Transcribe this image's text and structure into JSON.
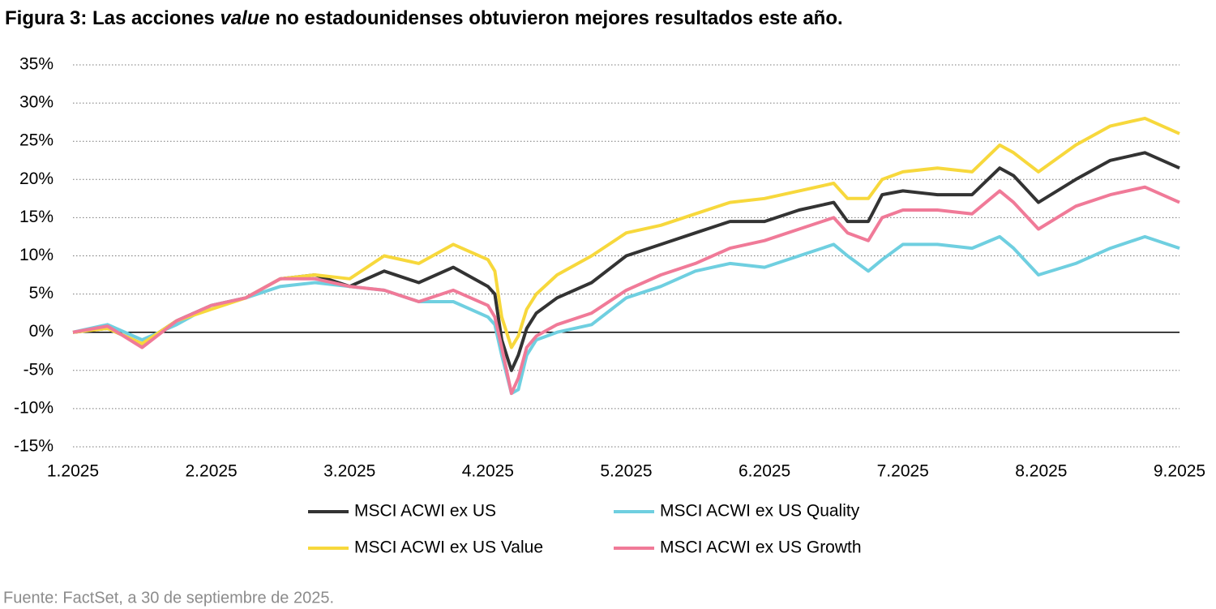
{
  "chart_data": {
    "type": "line",
    "title": [
      "Figura 3: Las acciones ",
      "value",
      " no estadounidenses obtuvieron mejores resultados este año."
    ],
    "source": "Fuente: FactSet, a 30 de septiembre de 2025.",
    "x": [
      1,
      1.25,
      1.5,
      1.75,
      2,
      2.25,
      2.5,
      2.75,
      3,
      3.25,
      3.5,
      3.75,
      4,
      4.05,
      4.1,
      4.17,
      4.22,
      4.28,
      4.35,
      4.5,
      4.75,
      5,
      5.25,
      5.5,
      5.75,
      6,
      6.25,
      6.5,
      6.6,
      6.75,
      6.85,
      7,
      7.25,
      7.5,
      7.7,
      7.8,
      7.98,
      8.25,
      8.5,
      8.75,
      9
    ],
    "series": [
      {
        "name": "MSCI ACWI ex US",
        "color": "#333333",
        "values": [
          0,
          0.5,
          -1.5,
          1.5,
          3.5,
          4.5,
          7,
          7.5,
          6,
          8,
          6.5,
          8.5,
          6,
          5,
          -1,
          -5,
          -3,
          0.5,
          2.5,
          4.5,
          6.5,
          10,
          11.5,
          13,
          14.5,
          14.5,
          16,
          17,
          14.5,
          14.5,
          18,
          18.5,
          18,
          18,
          21.5,
          20.5,
          17,
          20,
          22.5,
          23.5,
          21.5
        ]
      },
      {
        "name": "MSCI ACWI ex US Quality",
        "color": "#6fcfe0",
        "values": [
          0,
          1,
          -1,
          1,
          3.5,
          4.5,
          6,
          6.5,
          6,
          5.5,
          4,
          4,
          2,
          1,
          -3,
          -8,
          -7.5,
          -3,
          -1,
          0,
          1,
          4.5,
          6,
          8,
          9,
          8.5,
          10,
          11.5,
          10,
          8,
          9.5,
          11.5,
          11.5,
          11,
          12.5,
          11,
          7.5,
          9,
          11,
          12.5,
          11
        ]
      },
      {
        "name": "MSCI ACWI ex US Value",
        "color": "#f7d83c",
        "values": [
          0,
          0.5,
          -1.5,
          1.5,
          3,
          4.5,
          7,
          7.5,
          7,
          10,
          9,
          11.5,
          9.5,
          8,
          2,
          -2,
          -0.5,
          3,
          5,
          7.5,
          10,
          13,
          14,
          15.5,
          17,
          17.5,
          18.5,
          19.5,
          17.5,
          17.5,
          20,
          21,
          21.5,
          21,
          24.5,
          23.5,
          21,
          24.5,
          27,
          28,
          26
        ]
      },
      {
        "name": "MSCI ACWI ex US Growth",
        "color": "#f07a98",
        "values": [
          0,
          0.8,
          -2,
          1.5,
          3.5,
          4.5,
          7,
          7,
          6,
          5.5,
          4,
          5.5,
          3.5,
          2,
          -2,
          -8,
          -6,
          -2,
          -0.5,
          1,
          2.5,
          5.5,
          7.5,
          9,
          11,
          12,
          13.5,
          15,
          13,
          12,
          15,
          16,
          16,
          15.5,
          18.5,
          17,
          13.5,
          16.5,
          18,
          19,
          17
        ]
      }
    ],
    "xlim": [
      1,
      9
    ],
    "xticks": [
      {
        "value": 1,
        "label": "1.2025"
      },
      {
        "value": 2,
        "label": "2.2025"
      },
      {
        "value": 3,
        "label": "3.2025"
      },
      {
        "value": 4,
        "label": "4.2025"
      },
      {
        "value": 5,
        "label": "5.2025"
      },
      {
        "value": 6,
        "label": "6.2025"
      },
      {
        "value": 7,
        "label": "7.2025"
      },
      {
        "value": 8,
        "label": "8.2025"
      },
      {
        "value": 9,
        "label": "9.2025"
      }
    ],
    "ylim": [
      -15,
      35
    ],
    "yticks": [
      {
        "value": -15,
        "label": "-15%"
      },
      {
        "value": -10,
        "label": "-10%"
      },
      {
        "value": -5,
        "label": "-5%"
      },
      {
        "value": 0,
        "label": "0%"
      },
      {
        "value": 5,
        "label": "5%"
      },
      {
        "value": 10,
        "label": "10%"
      },
      {
        "value": 15,
        "label": "15%"
      },
      {
        "value": 20,
        "label": "20%"
      },
      {
        "value": 25,
        "label": "25%"
      },
      {
        "value": 30,
        "label": "30%"
      },
      {
        "value": 35,
        "label": "35%"
      }
    ],
    "grid": true
  }
}
